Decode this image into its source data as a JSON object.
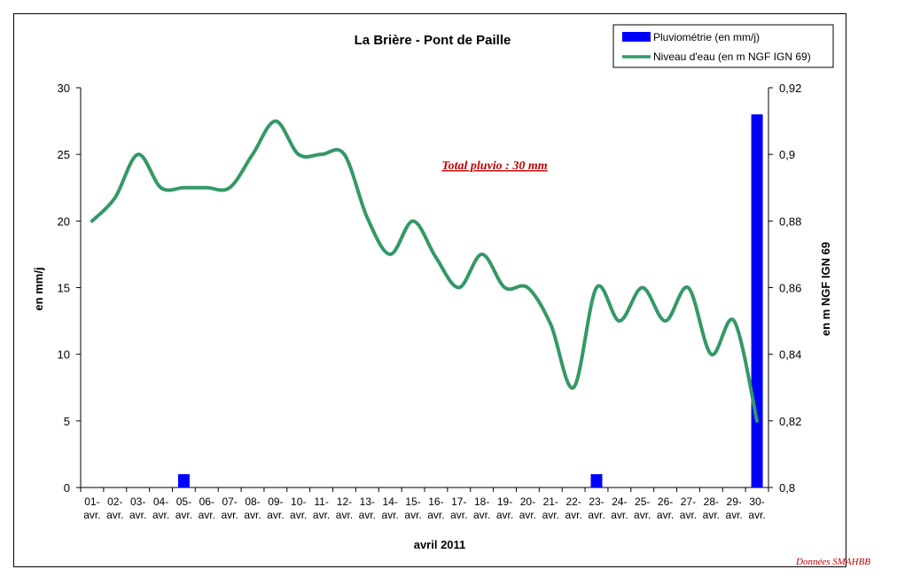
{
  "chart_data": {
    "type": "bar",
    "title": "La Brière - Pont de Paille",
    "xlabel": "avril 2011",
    "ylabel_left": "en mm/j",
    "ylabel_right": "en m NGF IGN 69",
    "ylim_left": [
      0,
      30
    ],
    "yticks_left": [
      "0",
      "5",
      "10",
      "15",
      "20",
      "25",
      "30"
    ],
    "ylim_right": [
      0.8,
      0.92
    ],
    "yticks_right": [
      "0,8",
      "0,82",
      "0,84",
      "0,86",
      "0,88",
      "0,9",
      "0,92"
    ],
    "categories": [
      "01-",
      "02-",
      "03-",
      "04-",
      "05-",
      "06-",
      "07-",
      "08-",
      "09-",
      "10-",
      "11-",
      "12-",
      "13-",
      "14-",
      "15-",
      "16-",
      "17-",
      "18-",
      "19-",
      "20-",
      "21-",
      "22-",
      "23-",
      "24-",
      "25-",
      "26-",
      "27-",
      "28-",
      "29-",
      "30-"
    ],
    "category_sublabel": "avr.",
    "series": [
      {
        "name": "Pluviométrie (en mm/j)",
        "type": "bar",
        "axis": "left",
        "color": "#0000ff",
        "values": [
          0,
          0,
          0,
          0,
          1,
          0,
          0,
          0,
          0,
          0,
          0,
          0,
          0,
          0,
          0,
          0,
          0,
          0,
          0,
          0,
          0,
          0,
          1,
          0,
          0,
          0,
          0,
          0,
          0,
          28
        ]
      },
      {
        "name": "Niveau d'eau (en m NGF IGN 69)",
        "type": "line",
        "axis": "right",
        "color": "#339966",
        "values": [
          0.88,
          0.887,
          0.9,
          0.89,
          0.89,
          0.89,
          0.89,
          0.9,
          0.91,
          0.9,
          0.9,
          0.9,
          0.881,
          0.87,
          0.88,
          0.869,
          0.86,
          0.87,
          0.86,
          0.86,
          0.849,
          0.83,
          0.86,
          0.85,
          0.86,
          0.85,
          0.86,
          0.84,
          0.85,
          0.82
        ]
      }
    ],
    "annotation": "Total pluvio : 30 mm",
    "annotation_color": "#c00000",
    "legend_position": "top-right",
    "grid": false
  },
  "footer": {
    "source": "Données SMAHBB"
  }
}
